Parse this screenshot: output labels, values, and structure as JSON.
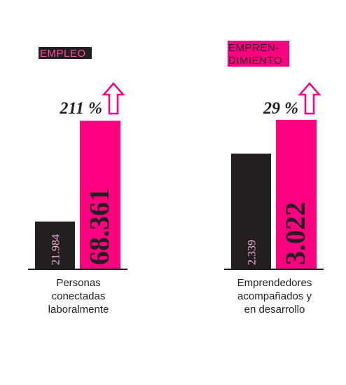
{
  "chart_data": [
    {
      "type": "bar",
      "title": [
        "EMPLEO"
      ],
      "values": [
        21984,
        68361
      ],
      "value_labels": [
        "21.984",
        "68.361"
      ],
      "colors": [
        "#231f20",
        "#ff0080"
      ],
      "ylim": [
        0,
        71000
      ],
      "annotation": "211 %",
      "xlabel": [
        "Personas",
        "conectadas",
        "laboralmente"
      ]
    },
    {
      "type": "bar",
      "title": [
        "EMPREN-",
        "DIMIENTO"
      ],
      "values": [
        2339,
        3022
      ],
      "value_labels": [
        "2.339",
        "3.022"
      ],
      "colors": [
        "#231f20",
        "#ff0080"
      ],
      "ylim": [
        0,
        3120
      ],
      "annotation": "29 %",
      "xlabel": [
        "Emprendedores",
        "acompañados y",
        "en desarrollo"
      ]
    }
  ]
}
